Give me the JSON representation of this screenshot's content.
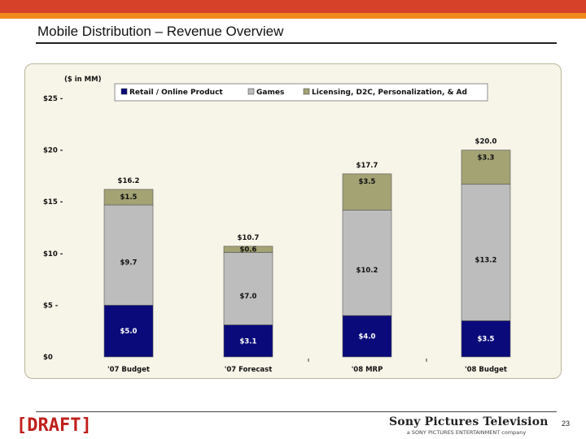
{
  "slide": {
    "title": "Mobile Distribution – Revenue Overview",
    "draft_label": "[DRAFT]",
    "brand_name": "Sony Pictures Television",
    "brand_subtitle": "a SONY PICTURES ENTERTAINMENT company",
    "page_number": "23"
  },
  "colors": {
    "top_bar_red": "#d6412a",
    "top_bar_orange": "#f08a1c",
    "panel_background": "#f7f5e8"
  },
  "chart_data": {
    "type": "bar",
    "stacked": true,
    "unit_label": "($ in MM)",
    "categories": [
      "'07 Budget",
      "'07 Forecast",
      "'08 MRP",
      "'08 Budget"
    ],
    "series": [
      {
        "name": "Retail / Online Product",
        "color": "#0a0a7a",
        "values": [
          5.0,
          3.1,
          4.0,
          3.5
        ],
        "labels": [
          "$5.0",
          "$3.1",
          "$4.0",
          "$3.5"
        ]
      },
      {
        "name": "Games",
        "color": "#bdbdbd",
        "values": [
          9.7,
          7.0,
          10.2,
          13.2
        ],
        "labels": [
          "$9.7",
          "$7.0",
          "$10.2",
          "$13.2"
        ]
      },
      {
        "name": "Licensing, D2C, Personalization, & Ad",
        "color": "#a3a374",
        "values": [
          1.5,
          0.6,
          3.5,
          3.3
        ],
        "labels": [
          "$1.5",
          "$0.6",
          "$3.5",
          "$3.3"
        ]
      }
    ],
    "totals": [
      16.2,
      10.7,
      17.7,
      20.0
    ],
    "total_labels": [
      "$16.2",
      "$10.7",
      "$17.7",
      "$20.0"
    ],
    "y_ticks": [
      "$0",
      "$5 -",
      "$10 -",
      "$15 -",
      "$20 -",
      "$25 -"
    ],
    "y_tick_values": [
      0,
      5,
      10,
      15,
      20,
      25
    ],
    "ylim": [
      0,
      25
    ],
    "legend": "top",
    "grid": false
  }
}
